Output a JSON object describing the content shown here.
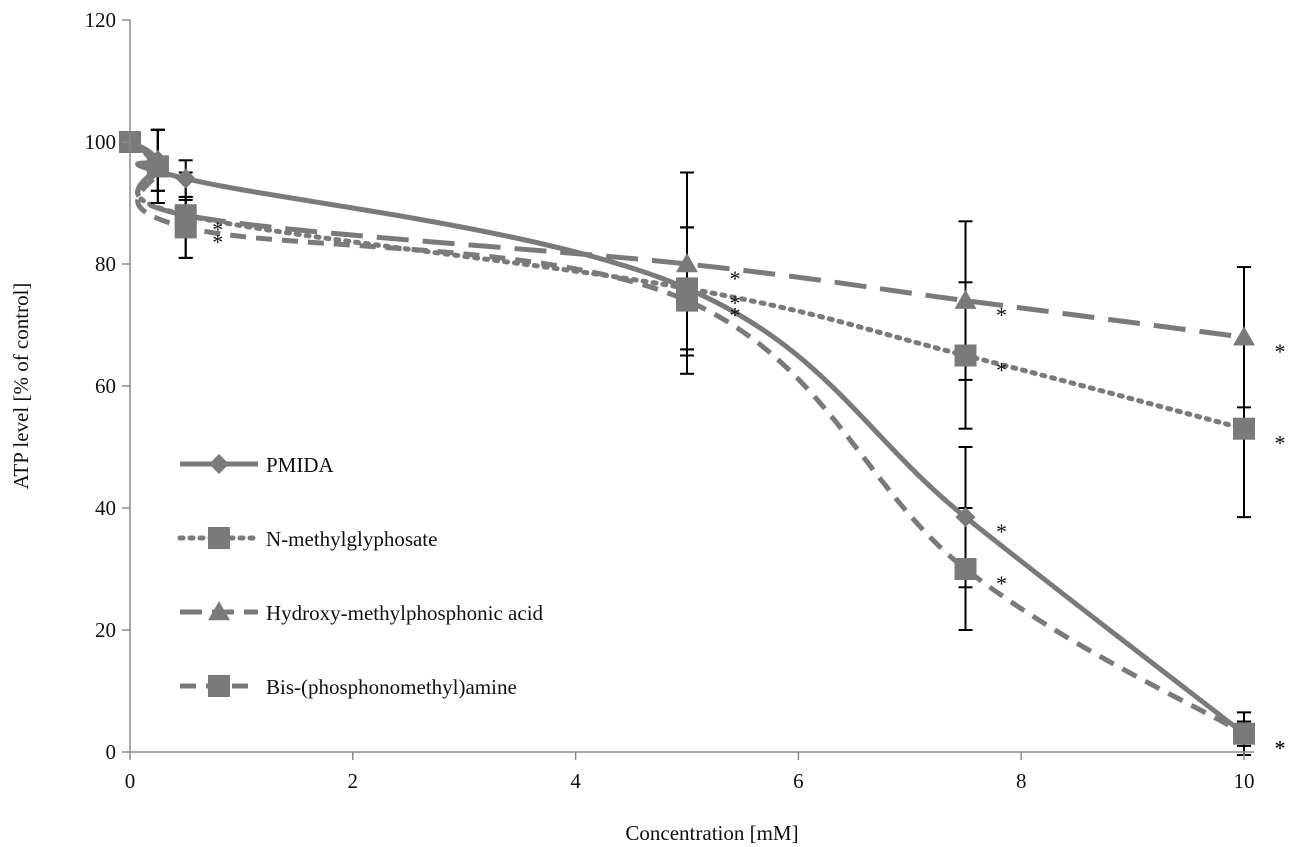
{
  "chart_data": {
    "type": "line",
    "xlabel": "Concentration [mM]",
    "ylabel": "ATP level [% of control]",
    "xlim": [
      0,
      10
    ],
    "ylim": [
      0,
      120
    ],
    "xticks": [
      0,
      2,
      4,
      6,
      8,
      10
    ],
    "yticks": [
      0,
      20,
      40,
      60,
      80,
      100,
      120
    ],
    "grid": false,
    "legend_position": "left",
    "series": [
      {
        "name": "PMIDA",
        "line": "solid",
        "marker": "diamond",
        "color": "#7a7a7a",
        "points": [
          {
            "x": 0,
            "y": 100,
            "err": 0
          },
          {
            "x": 0.25,
            "y": 97,
            "err": 5
          },
          {
            "x": 0.5,
            "y": 94,
            "err": 3
          },
          {
            "x": 5,
            "y": 76,
            "err": 10
          },
          {
            "x": 7.5,
            "y": 38.5,
            "err": 11.5,
            "sig": "*"
          },
          {
            "x": 10,
            "y": 3,
            "err": 3.5,
            "sig": "*"
          }
        ]
      },
      {
        "name": "N-methylglyphosate",
        "line": "dotted",
        "marker": "square",
        "color": "#7a7a7a",
        "points": [
          {
            "x": 0,
            "y": 100,
            "err": 0
          },
          {
            "x": 0.25,
            "y": 96,
            "err": 6
          },
          {
            "x": 0.5,
            "y": 88,
            "err": 7,
            "sig": "*"
          },
          {
            "x": 5,
            "y": 76,
            "err": 10,
            "sig": "*"
          },
          {
            "x": 7.5,
            "y": 65,
            "err": 12,
            "sig": "*"
          },
          {
            "x": 10,
            "y": 53,
            "err": 14.5,
            "sig": "*"
          }
        ]
      },
      {
        "name": "Hydroxy-methylphosphonic acid",
        "line": "long-dash",
        "marker": "triangle",
        "color": "#7a7a7a",
        "points": [
          {
            "x": 0,
            "y": 100,
            "err": 0
          },
          {
            "x": 0.25,
            "y": 97,
            "err": 5
          },
          {
            "x": 0.5,
            "y": 88,
            "err": 2.5
          },
          {
            "x": 5,
            "y": 80,
            "err": 15,
            "sig": "*"
          },
          {
            "x": 7.5,
            "y": 74,
            "err": 13,
            "sig": "*"
          },
          {
            "x": 10,
            "y": 68,
            "err": 11.5,
            "sig": "*"
          }
        ]
      },
      {
        "name": "Bis-(phosphonomethyl)amine",
        "line": "dashed",
        "marker": "square",
        "color": "#7a7a7a",
        "points": [
          {
            "x": 0,
            "y": 100,
            "err": 0
          },
          {
            "x": 0.25,
            "y": 96,
            "err": 6
          },
          {
            "x": 0.5,
            "y": 86,
            "err": 5,
            "sig": "*"
          },
          {
            "x": 5,
            "y": 74,
            "err": 12,
            "sig": "*"
          },
          {
            "x": 7.5,
            "y": 30,
            "err": 10,
            "sig": "*"
          },
          {
            "x": 10,
            "y": 3,
            "err": 2,
            "sig": "*"
          }
        ]
      }
    ]
  }
}
